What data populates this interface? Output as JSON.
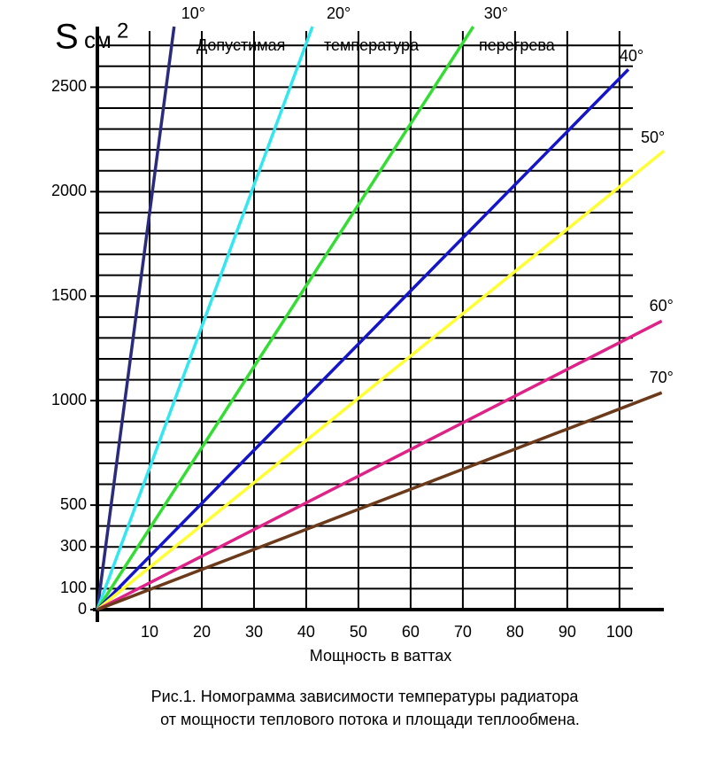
{
  "chart_data": {
    "type": "line",
    "ylabel": "S",
    "yunit": "см",
    "yunit_power": "2",
    "xlabel": "Мощность в ваттах",
    "annotation": [
      "Допустимая",
      "температура",
      "перегрева"
    ],
    "caption": [
      "Рис.1. Номограмма зависимости температуры радиатора",
      "от мощности теплового потока и площади теплообмена."
    ],
    "xlim": [
      0,
      108.5
    ],
    "ylim": [
      0,
      2790
    ],
    "xticks": [
      10,
      20,
      30,
      40,
      50,
      60,
      70,
      80,
      90,
      100
    ],
    "yticks": [
      0,
      100,
      300,
      500,
      1000,
      1500,
      2000,
      2500
    ],
    "ygrid_step": 100,
    "grid": true,
    "series": [
      {
        "name": "10°",
        "color": "#2b2b7e",
        "x": [
          0,
          14.7
        ],
        "values": [
          0,
          2790
        ]
      },
      {
        "name": "20°",
        "color": "#33e6f0",
        "x": [
          0,
          41.2
        ],
        "values": [
          0,
          2790
        ]
      },
      {
        "name": "30°",
        "color": "#33dd33",
        "x": [
          0,
          72
        ],
        "values": [
          0,
          2790
        ]
      },
      {
        "name": "40°",
        "color": "#1414c8",
        "x": [
          0,
          101.7
        ],
        "values": [
          0,
          2585
        ]
      },
      {
        "name": "50°",
        "color": "#ffff33",
        "x": [
          0,
          108.5
        ],
        "values": [
          0,
          2195
        ]
      },
      {
        "name": "60°",
        "color": "#dd2288",
        "x": [
          0,
          108.1
        ],
        "values": [
          0,
          1381
        ]
      },
      {
        "name": "70°",
        "color": "#6b3a1a",
        "x": [
          0,
          108.1
        ],
        "values": [
          0,
          1038
        ]
      }
    ]
  }
}
